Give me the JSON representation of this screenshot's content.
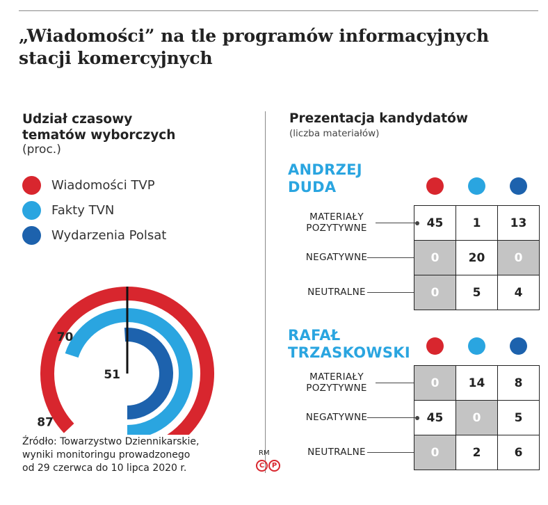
{
  "title": "„Wiadomości” na tle programów informacyjnych stacji komercyjnych",
  "left": {
    "heading_line1": "Udział czasowy",
    "heading_line2": "tematów wyborczych",
    "subheading": "(proc.)"
  },
  "right": {
    "heading": "Prezentacja kandydatów",
    "subheading": "(liczba materiałów)"
  },
  "colors": {
    "wiadomosci": "#d8262e",
    "fakty": "#2aa5e0",
    "wydarzenia": "#1d62ad",
    "grey_cell": "#c4c4c4"
  },
  "chart_data": [
    {
      "type": "radial-bar",
      "categories": [
        "Wiadomości TVP",
        "Fakty TVN",
        "Wydarzenia Polsat"
      ],
      "values": [
        87,
        70,
        51
      ],
      "ylim": [
        0,
        100
      ],
      "ylabel": "(proc.)",
      "title": "Udział czasowy tematów wyborczych",
      "legend": "top-left"
    },
    {
      "type": "table",
      "title": "Prezentacja kandydatów",
      "subtitle": "(liczba materiałów)",
      "rows": [
        "MATERIAŁY POZYTYWNE",
        "NEGATYWNE",
        "NEUTRALNE"
      ],
      "columns": [
        "Wiadomości TVP",
        "Fakty TVN",
        "Wydarzenia Polsat"
      ],
      "candidates": [
        {
          "name_line1": "ANDRZEJ",
          "name_line2": "DUDA",
          "rows": [
            {
              "label1": "MATERIAŁY",
              "label2": "POZYTYWNE",
              "values": [
                "45",
                "1",
                "13"
              ],
              "grey": [
                false,
                false,
                false
              ]
            },
            {
              "label1": "NEGATYWNE",
              "label2": "",
              "values": [
                "0",
                "20",
                "0"
              ],
              "grey": [
                true,
                false,
                true
              ]
            },
            {
              "label1": "NEUTRALNE",
              "label2": "",
              "values": [
                "0",
                "5",
                "4"
              ],
              "grey": [
                true,
                false,
                false
              ]
            }
          ]
        },
        {
          "name_line1": "RAFAŁ",
          "name_line2": "TRZASKOWSKI",
          "rows": [
            {
              "label1": "MATERIAŁY",
              "label2": "POZYTYWNE",
              "values": [
                "0",
                "14",
                "8"
              ],
              "grey": [
                true,
                false,
                false
              ]
            },
            {
              "label1": "NEGATYWNE",
              "label2": "",
              "values": [
                "45",
                "0",
                "5"
              ],
              "grey": [
                false,
                true,
                false
              ]
            },
            {
              "label1": "NEUTRALNE",
              "label2": "",
              "values": [
                "0",
                "2",
                "6"
              ],
              "grey": [
                true,
                false,
                false
              ]
            }
          ]
        }
      ]
    }
  ],
  "source": {
    "line1": "Źródło: Towarzystwo Dziennikarskie,",
    "line2": "wyniki monitoringu prowadzonego",
    "line3": "od 29 czerwca do 10 lipca 2020 r."
  },
  "credit": {
    "author": "RM",
    "logo_text": "©℗"
  }
}
